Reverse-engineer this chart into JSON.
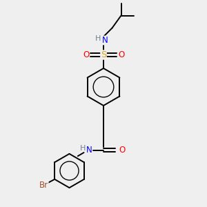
{
  "bg_color": "#efefef",
  "bond_color": "#000000",
  "atom_colors": {
    "N": "#0000FF",
    "O": "#FF0000",
    "S": "#DAA520",
    "Br": "#A0522D",
    "C": "#000000"
  },
  "font_size": 8.5,
  "lw": 1.4
}
